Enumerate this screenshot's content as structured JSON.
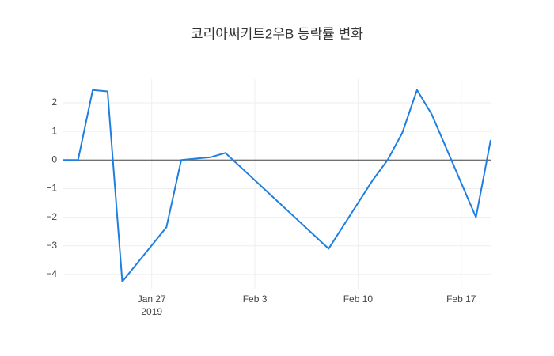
{
  "chart_data": {
    "type": "line",
    "title": "코리아써키트2우B 등락률 변화",
    "x": [
      "2019-01-21",
      "2019-01-22",
      "2019-01-23",
      "2019-01-24",
      "2019-01-25",
      "2019-01-28",
      "2019-01-29",
      "2019-01-31",
      "2019-02-01",
      "2019-02-08",
      "2019-02-11",
      "2019-02-12",
      "2019-02-13",
      "2019-02-14",
      "2019-02-15",
      "2019-02-18",
      "2019-02-19"
    ],
    "series": [
      {
        "color": "#1f7fe0",
        "values": [
          0,
          0,
          2.45,
          2.4,
          -4.25,
          -2.35,
          0,
          0.1,
          0.25,
          -3.1,
          -0.7,
          0,
          0.95,
          2.45,
          1.6,
          -2.0,
          0.7
        ]
      }
    ],
    "xlim": [
      "2019-01-21",
      "2019-02-19"
    ],
    "xticks": [
      {
        "value": "2019-01-27",
        "label": "Jan 27",
        "sublabel": "2019"
      },
      {
        "value": "2019-02-03",
        "label": "Feb 3"
      },
      {
        "value": "2019-02-10",
        "label": "Feb 10"
      },
      {
        "value": "2019-02-17",
        "label": "Feb 17"
      }
    ],
    "ylim": [
      -4.5,
      2.83
    ],
    "yticks": [
      {
        "value": -4,
        "label": "−4"
      },
      {
        "value": -3,
        "label": "−3"
      },
      {
        "value": -2,
        "label": "−2"
      },
      {
        "value": -1,
        "label": "−1"
      },
      0,
      1,
      2
    ],
    "grid": true,
    "zeroline": true
  }
}
